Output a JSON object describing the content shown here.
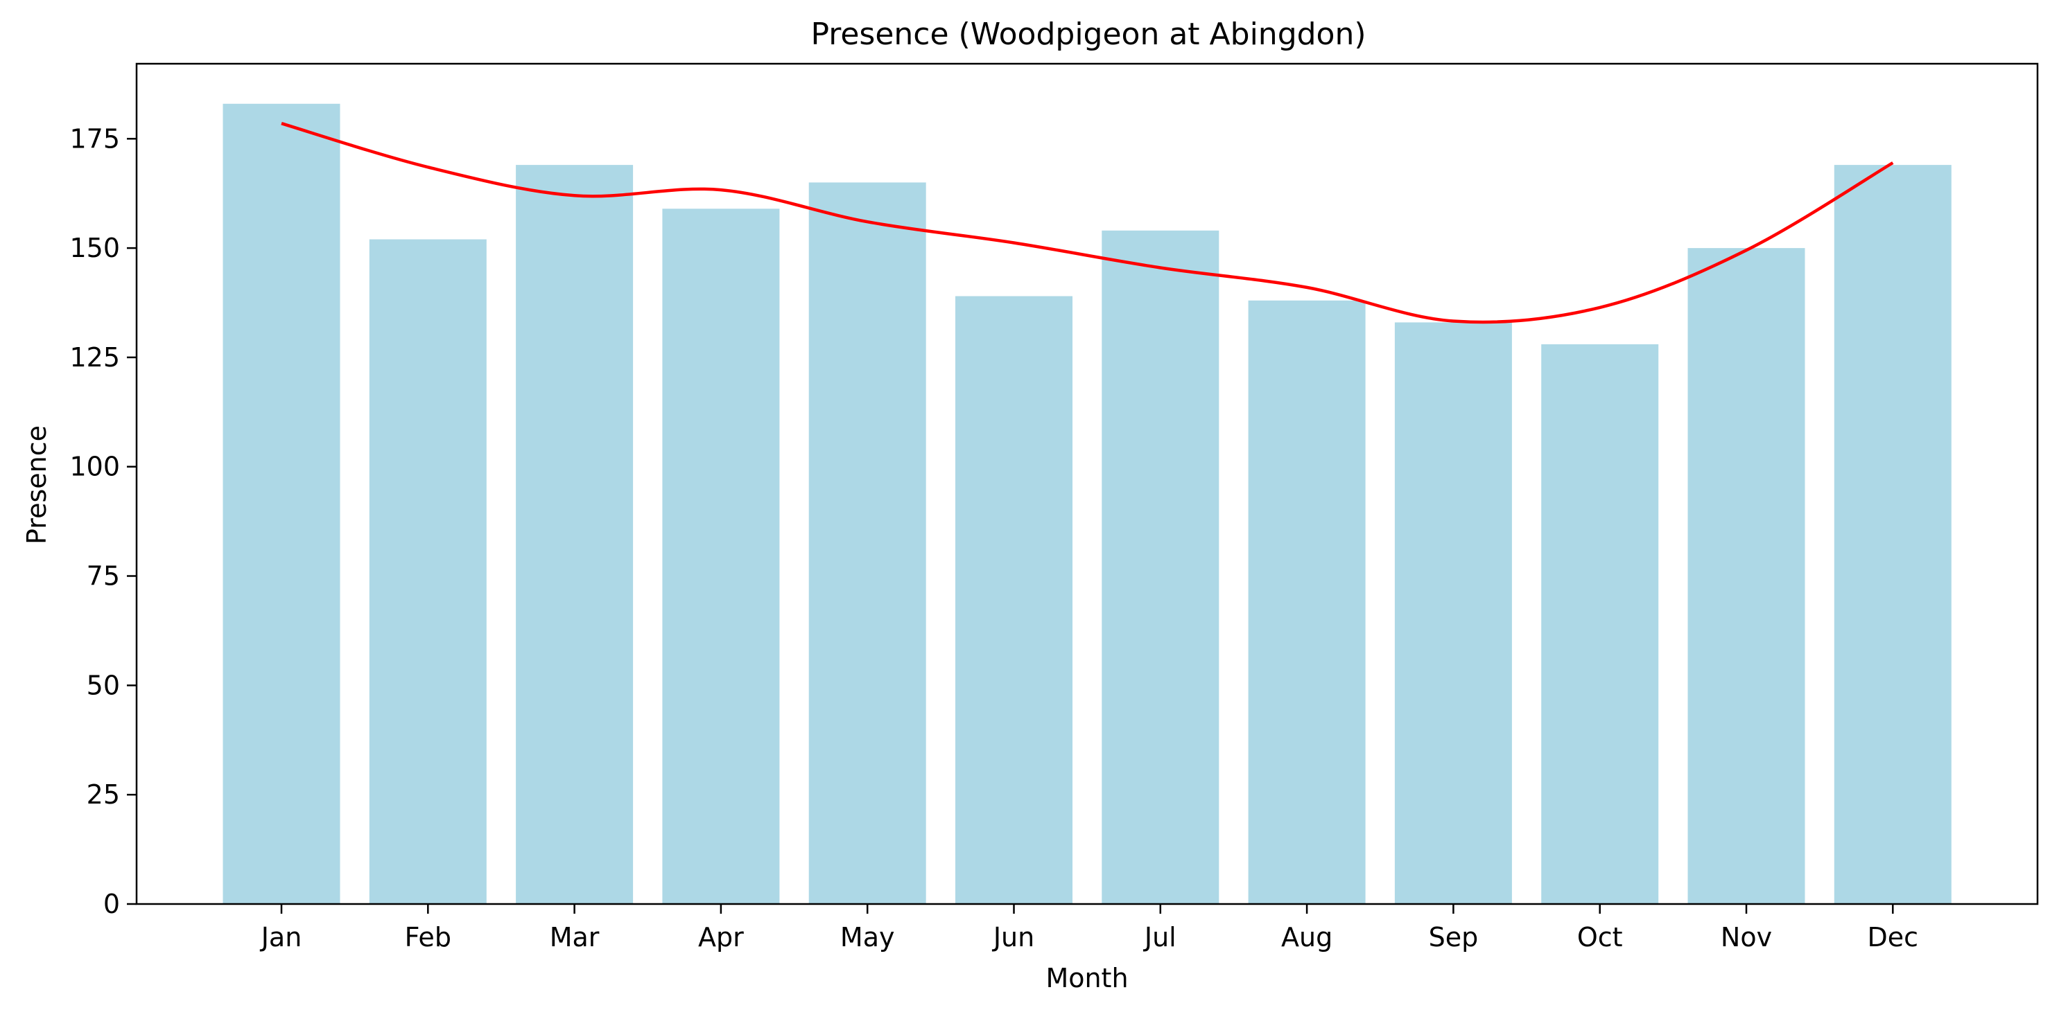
{
  "chart_data": {
    "type": "bar",
    "title": "Presence (Woodpigeon at Abingdon)",
    "xlabel": "Month",
    "ylabel": "Presence",
    "categories": [
      "Jan",
      "Feb",
      "Mar",
      "Apr",
      "May",
      "Jun",
      "Jul",
      "Aug",
      "Sep",
      "Oct",
      "Nov",
      "Dec"
    ],
    "values": [
      183,
      152,
      169,
      159,
      165,
      139,
      154,
      138,
      133,
      128,
      150,
      169
    ],
    "trend_line": [
      178.5,
      168.5,
      162,
      163.3,
      156,
      151.2,
      145.5,
      141,
      133.3,
      136.4,
      149.5,
      169.5
    ],
    "ylim": [
      0,
      192.15
    ],
    "yticks": [
      0,
      25,
      50,
      75,
      100,
      125,
      150,
      175
    ],
    "grid": false,
    "legend": "none",
    "colors": {
      "bar": "#add8e6",
      "trend_line": "#ff0000",
      "axes": "#000000"
    }
  }
}
